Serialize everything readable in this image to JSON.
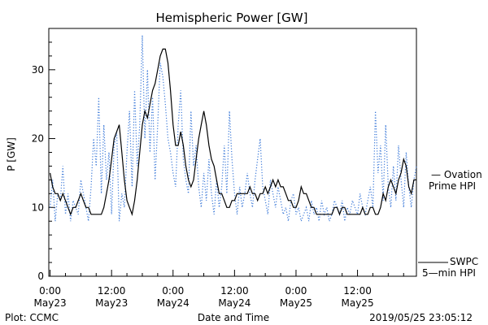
{
  "chart_data": {
    "type": "line",
    "title": "Hemispheric Power [GW]",
    "xlabel": "Date and Time",
    "ylabel": "P [GW]",
    "ylim": [
      0,
      36
    ],
    "yticks": [
      0,
      10,
      20,
      30
    ],
    "xlim": [
      -0.25,
      71.5
    ],
    "xticks": [
      {
        "x": 0,
        "time": "0:00",
        "date": "May23"
      },
      {
        "x": 12,
        "time": "12:00",
        "date": "May23"
      },
      {
        "x": 24,
        "time": "0:00",
        "date": "May24"
      },
      {
        "x": 36,
        "time": "12:00",
        "date": "May24"
      },
      {
        "x": 48,
        "time": "0:00",
        "date": "May25"
      },
      {
        "x": 60,
        "time": "12:00",
        "date": "May25"
      }
    ],
    "grid": false,
    "series": [
      {
        "name": "SWPC 5-min HPI",
        "style": "solid",
        "color": "#000000",
        "x": [
          0,
          0.5,
          1,
          1.5,
          2,
          2.5,
          3,
          3.5,
          4,
          4.5,
          5,
          5.5,
          6,
          6.5,
          7,
          7.5,
          8,
          8.5,
          9,
          9.5,
          10,
          10.5,
          11,
          11.5,
          12,
          12.5,
          13,
          13.5,
          14,
          14.5,
          15,
          15.5,
          16,
          16.5,
          17,
          17.5,
          18,
          18.5,
          19,
          19.5,
          20,
          20.5,
          21,
          21.5,
          22,
          22.5,
          23,
          23.5,
          24,
          24.5,
          25,
          25.5,
          26,
          26.5,
          27,
          27.5,
          28,
          28.5,
          29,
          29.5,
          30,
          30.5,
          31,
          31.5,
          32,
          32.5,
          33,
          33.5,
          34,
          34.5,
          35,
          35.5,
          36,
          36.5,
          37,
          37.5,
          38,
          38.5,
          39,
          39.5,
          40,
          40.5,
          41,
          41.5,
          42,
          42.5,
          43,
          43.5,
          44,
          44.5,
          45,
          45.5,
          46,
          46.5,
          47,
          47.5,
          48,
          48.5,
          49,
          49.5,
          50,
          50.5,
          51,
          51.5,
          52,
          52.5,
          53,
          53.5,
          54,
          54.5,
          55,
          55.5,
          56,
          56.5,
          57,
          57.5,
          58,
          58.5,
          59,
          59.5,
          60,
          60.5,
          61,
          61.5,
          62,
          62.5,
          63,
          63.5,
          64,
          64.5,
          65,
          65.5,
          66,
          66.5,
          67,
          67.5,
          68,
          68.5,
          69,
          69.5,
          70,
          70.5,
          71,
          71.5
        ],
        "y": [
          15,
          13,
          12,
          12,
          11,
          12,
          11,
          10,
          9,
          10,
          10,
          11,
          12,
          11,
          10,
          10,
          9,
          9,
          9,
          9,
          9,
          10,
          12,
          14,
          17,
          20,
          21,
          22,
          18,
          14,
          11,
          10,
          9,
          11,
          14,
          18,
          22,
          24,
          23,
          25,
          27,
          28,
          30,
          32,
          33,
          33,
          31,
          27,
          22,
          19,
          19,
          21,
          19,
          16,
          14,
          13,
          14,
          17,
          20,
          22,
          24,
          22,
          19,
          17,
          16,
          14,
          12,
          12,
          11,
          10,
          10,
          11,
          11,
          12,
          12,
          12,
          12,
          12,
          13,
          12,
          12,
          11,
          12,
          12,
          13,
          12,
          13,
          14,
          13,
          14,
          13,
          13,
          12,
          11,
          11,
          10,
          10,
          11,
          13,
          12,
          12,
          11,
          10,
          10,
          9,
          9,
          9,
          9,
          9,
          9,
          9,
          10,
          10,
          9,
          10,
          10,
          9,
          9,
          9,
          9,
          9,
          9,
          10,
          9,
          9,
          10,
          10,
          9,
          9,
          10,
          12,
          11,
          13,
          14,
          13,
          12,
          14,
          15,
          17,
          16,
          13,
          12,
          14,
          14
        ]
      },
      {
        "name": "Ovation Prime HPI",
        "style": "dotted",
        "color": "#3a78d8",
        "x": [
          0,
          0.5,
          1,
          1.5,
          2,
          2.5,
          3,
          3.5,
          4,
          4.5,
          5,
          5.5,
          6,
          6.5,
          7,
          7.5,
          8,
          8.5,
          9,
          9.5,
          10,
          10.5,
          11,
          11.5,
          12,
          12.5,
          13,
          13.5,
          14,
          14.5,
          15,
          15.5,
          16,
          16.5,
          17,
          17.5,
          18,
          18.5,
          19,
          19.5,
          20,
          20.5,
          21,
          21.5,
          22,
          22.5,
          23,
          23.5,
          24,
          24.5,
          25,
          25.5,
          26,
          26.5,
          27,
          27.5,
          28,
          28.5,
          29,
          29.5,
          30,
          30.5,
          31,
          31.5,
          32,
          32.5,
          33,
          33.5,
          34,
          34.5,
          35,
          35.5,
          36,
          36.5,
          37,
          37.5,
          38,
          38.5,
          39,
          39.5,
          40,
          40.5,
          41,
          41.5,
          42,
          42.5,
          43,
          43.5,
          44,
          44.5,
          45,
          45.5,
          46,
          46.5,
          47,
          47.5,
          48,
          48.5,
          49,
          49.5,
          50,
          50.5,
          51,
          51.5,
          52,
          52.5,
          53,
          53.5,
          54,
          54.5,
          55,
          55.5,
          56,
          56.5,
          57,
          57.5,
          58,
          58.5,
          59,
          59.5,
          60,
          60.5,
          61,
          61.5,
          62,
          62.5,
          63,
          63.5,
          64,
          64.5,
          65,
          65.5,
          66,
          66.5,
          67,
          67.5,
          68,
          68.5,
          69,
          69.5,
          70,
          70.5,
          71,
          71.5
        ],
        "y": [
          10,
          14,
          8,
          12,
          11,
          16,
          9,
          12,
          8,
          11,
          10,
          9,
          14,
          12,
          10,
          8,
          13,
          20,
          16,
          26,
          12,
          22,
          14,
          18,
          9,
          19,
          21,
          8,
          12,
          10,
          18,
          24,
          13,
          27,
          16,
          22,
          35,
          20,
          30,
          18,
          26,
          14,
          22,
          31,
          29,
          25,
          20,
          18,
          15,
          13,
          22,
          27,
          17,
          14,
          12,
          24,
          16,
          19,
          13,
          10,
          15,
          11,
          17,
          12,
          9,
          14,
          10,
          13,
          19,
          12,
          24,
          17,
          12,
          9,
          13,
          10,
          12,
          15,
          12,
          10,
          14,
          17,
          20,
          13,
          11,
          9,
          14,
          12,
          10,
          13,
          11,
          9,
          10,
          8,
          11,
          12,
          9,
          10,
          8,
          9,
          10,
          8,
          11,
          9,
          10,
          8,
          11,
          9,
          10,
          8,
          9,
          11,
          10,
          9,
          11,
          8,
          10,
          9,
          11,
          10,
          9,
          12,
          10,
          9,
          11,
          13,
          10,
          24,
          15,
          19,
          11,
          22,
          13,
          10,
          16,
          11,
          19,
          14,
          10,
          18,
          13,
          10,
          14,
          16
        ]
      }
    ],
    "legend": {
      "placement": "right",
      "ovation": {
        "line1": "— Ovation",
        "line2": "Prime HPI",
        "color": "#3a78d8"
      },
      "swpc": {
        "line1": "SWPC",
        "line2": "5—min HPI",
        "color": "#000000"
      }
    }
  },
  "footer": {
    "left": "Plot: CCMC",
    "right": "2019/05/25 23:05:12"
  }
}
